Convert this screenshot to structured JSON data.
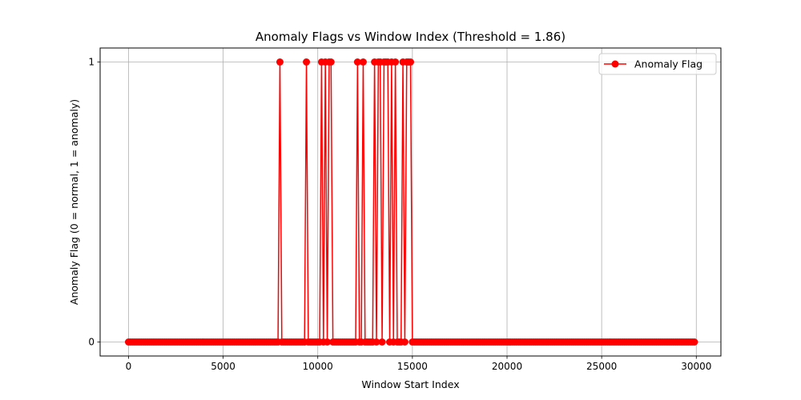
{
  "chart_data": {
    "type": "line",
    "title": "Anomaly Flags vs Window Index (Threshold = 1.86)",
    "xlabel": "Window Start Index",
    "ylabel": "Anomaly Flag (0 = normal, 1 = anomaly)",
    "xlim": [
      -1500,
      31300
    ],
    "ylim": [
      -0.05,
      1.05
    ],
    "x_ticks": [
      0,
      5000,
      10000,
      15000,
      20000,
      25000,
      30000
    ],
    "x_tick_labels": [
      "0",
      "5000",
      "10000",
      "15000",
      "20000",
      "25000",
      "30000"
    ],
    "y_ticks": [
      0,
      1
    ],
    "y_tick_labels": [
      "0",
      "1"
    ],
    "grid": true,
    "legend_position": "top-right",
    "series": [
      {
        "name": "Anomaly Flag",
        "color": "#ff0000",
        "marker": "circle",
        "x_start": 0,
        "x_step": 100,
        "count": 300,
        "anomaly_x": [
          8000,
          9400,
          10200,
          10400,
          10600,
          10700,
          12100,
          12400,
          13000,
          13200,
          13300,
          13500,
          13600,
          13700,
          13900,
          14100,
          14500,
          14700,
          14800,
          14900
        ]
      }
    ]
  }
}
